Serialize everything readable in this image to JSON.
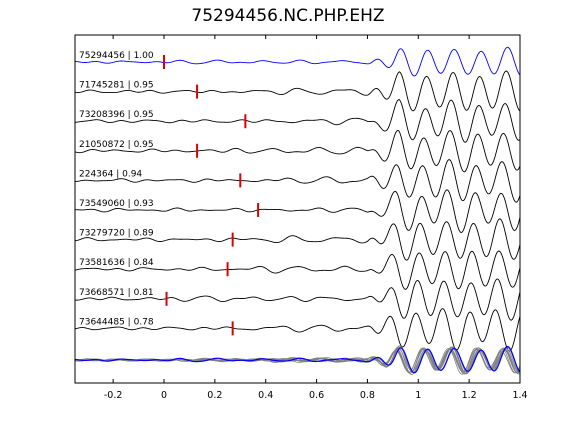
{
  "chart_data": {
    "type": "line",
    "title": "75294456.NC.PHP.EHZ",
    "xlim": [
      -0.35,
      1.4
    ],
    "xticks": [
      -0.2,
      0,
      0.2,
      0.4,
      0.6,
      0.8,
      1,
      1.2,
      1.4
    ],
    "xtick_labels": [
      "-0.2",
      "0",
      "0.2",
      "0.4",
      "0.6",
      "0.8",
      "1",
      "1.2",
      "1.4"
    ],
    "grid": false,
    "traces": [
      {
        "label": "75294456 | 1.00",
        "pick": 0.0,
        "color": "#0000ff"
      },
      {
        "label": "71745281 | 0.95",
        "pick": 0.13,
        "color": "#000000"
      },
      {
        "label": "73208396 | 0.95",
        "pick": 0.32,
        "color": "#000000"
      },
      {
        "label": "21050872 | 0.95",
        "pick": 0.13,
        "color": "#000000"
      },
      {
        "label": "224364 | 0.94",
        "pick": 0.3,
        "color": "#000000"
      },
      {
        "label": "73549060 | 0.93",
        "pick": 0.37,
        "color": "#000000"
      },
      {
        "label": "73279720 | 0.89",
        "pick": 0.27,
        "color": "#000000"
      },
      {
        "label": "73581636 | 0.84",
        "pick": 0.25,
        "color": "#000000"
      },
      {
        "label": "73668571 | 0.81",
        "pick": 0.01,
        "color": "#000000"
      },
      {
        "label": "73644485 | 0.78",
        "pick": 0.27,
        "color": "#000000"
      }
    ],
    "stack_colors": {
      "overlay": "#808080",
      "reference": "#0000ff"
    },
    "pick_color": "#e00000"
  }
}
